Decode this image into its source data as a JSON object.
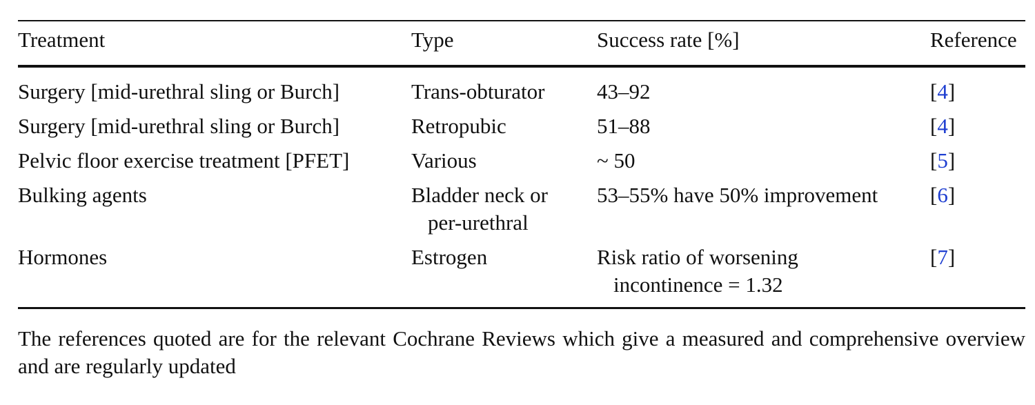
{
  "table": {
    "headers": {
      "treatment": "Treatment",
      "type": "Type",
      "success": "Success rate [%]",
      "reference": "Reference"
    },
    "rows": [
      {
        "treatment": "Surgery [mid-urethral sling or Burch]",
        "type": [
          "Trans-obturator"
        ],
        "success": [
          "43–92"
        ],
        "ref_open": "[",
        "ref_num": "4",
        "ref_close": "]"
      },
      {
        "treatment": "Surgery [mid-urethral sling or Burch]",
        "type": [
          "Retropubic"
        ],
        "success": [
          "51–88"
        ],
        "ref_open": "[",
        "ref_num": "4",
        "ref_close": "]"
      },
      {
        "treatment": "Pelvic floor exercise treatment [PFET]",
        "type": [
          "Various"
        ],
        "success": [
          "~ 50"
        ],
        "ref_open": "[",
        "ref_num": "5",
        "ref_close": "]"
      },
      {
        "treatment": "Bulking agents",
        "type": [
          "Bladder neck or",
          "per-urethral"
        ],
        "success": [
          "53–55% have 50% improvement"
        ],
        "ref_open": "[",
        "ref_num": "6",
        "ref_close": "]"
      },
      {
        "treatment": "Hormones",
        "type": [
          "Estrogen"
        ],
        "success": [
          "Risk ratio of worsening",
          "incontinence = 1.32"
        ],
        "ref_open": "[",
        "ref_num": "7",
        "ref_close": "]"
      }
    ]
  },
  "footnote": "The references quoted are for the relevant Cochrane Reviews which give a measured and comprehensive overview and are regularly updated"
}
